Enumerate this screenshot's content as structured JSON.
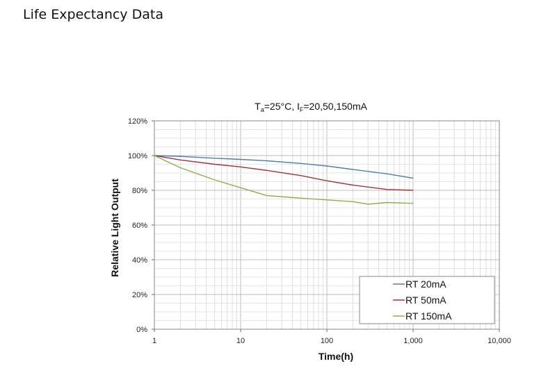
{
  "page": {
    "title": "Life Expectancy Data"
  },
  "chart_data": {
    "type": "line",
    "title_parts": {
      "t": "T",
      "t_sub": "a",
      "mid": "=25°C, I",
      "i_sub": "F",
      "end": "=20,50,150mA"
    },
    "xlabel": "Time(h)",
    "ylabel": "Relative Light Output",
    "xscale": "log",
    "xlim": [
      1,
      10000
    ],
    "ylim": [
      0,
      120
    ],
    "x_ticks": [
      1,
      10,
      100,
      1000,
      10000
    ],
    "x_tick_labels": [
      "1",
      "10",
      "100",
      "1,000",
      "10,000"
    ],
    "y_ticks": [
      0,
      20,
      40,
      60,
      80,
      100,
      120
    ],
    "y_tick_labels": [
      "0%",
      "20%",
      "40%",
      "60%",
      "80%",
      "100%",
      "120%"
    ],
    "grid": true,
    "legend_position": "bottom-right",
    "series": [
      {
        "name": "RT 20mA",
        "color": "#4f7cac",
        "x": [
          1,
          2,
          5,
          10,
          20,
          50,
          100,
          200,
          500,
          1000
        ],
        "y": [
          100,
          99.5,
          98.5,
          97.8,
          97,
          95.5,
          94,
          92,
          89.5,
          87
        ]
      },
      {
        "name": "RT 50mA",
        "color": "#a0333a",
        "x": [
          1,
          2,
          5,
          10,
          20,
          50,
          100,
          200,
          500,
          1000
        ],
        "y": [
          100,
          97.5,
          95,
          93.5,
          91.5,
          88.5,
          85.5,
          83,
          80.5,
          80
        ]
      },
      {
        "name": "RT 150mA",
        "color": "#8caf4a",
        "x": [
          1,
          2,
          5,
          10,
          20,
          50,
          100,
          200,
          300,
          500,
          1000
        ],
        "y": [
          100,
          93,
          86,
          81.5,
          77,
          75.5,
          74.5,
          73.5,
          72,
          73,
          72.5
        ]
      }
    ]
  }
}
